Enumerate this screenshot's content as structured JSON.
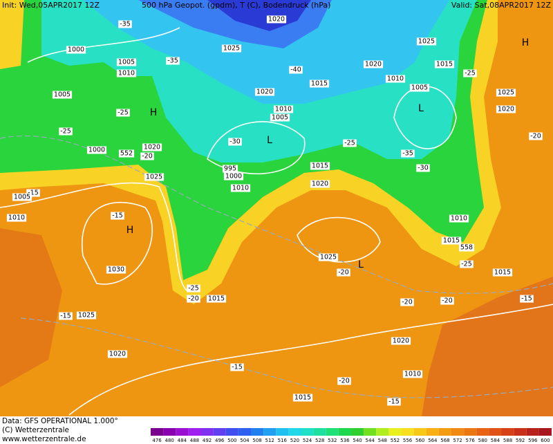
{
  "header": {
    "init": "Init: Wed,05APR2017 12Z",
    "title": "500 hPa Geopot. (gpdm), T (C), Bodendruck (hPa)",
    "valid": "Valid: Sat,08APR2017 12Z"
  },
  "map_labels": [
    "-35",
    "1000",
    "1005",
    "1010",
    "-35",
    "1020",
    "1025",
    "-40",
    "1015",
    "1020",
    "1025",
    "1020",
    "1015",
    "-25",
    "1010",
    "1005",
    "1025",
    "1020",
    "H",
    "L",
    "H",
    "1005",
    "-25",
    "-25",
    "1010",
    "1005",
    "L",
    "-30",
    "1000",
    "552",
    "1020",
    "-20",
    "-25",
    "-35",
    "-30",
    "1015",
    "1020",
    "995",
    "1000",
    "1010",
    "1025",
    "-15",
    "1005",
    "1010",
    "-15",
    "H",
    "1010",
    "1015",
    "558",
    "-25",
    "1030",
    "1025",
    "L",
    "-20",
    "-25",
    "-20",
    "1015",
    "1015",
    "-20",
    "-20",
    "-15",
    "-15",
    "1025",
    "1020",
    "1020",
    "-15",
    "-20",
    "1010",
    "1015",
    "-15",
    "-20"
  ],
  "colorbar": {
    "labels": [
      "476",
      "480",
      "484",
      "488",
      "492",
      "496",
      "500",
      "504",
      "508",
      "512",
      "516",
      "520",
      "524",
      "528",
      "532",
      "536",
      "540",
      "544",
      "548",
      "552",
      "556",
      "560",
      "564",
      "568",
      "572",
      "576",
      "580",
      "584",
      "588",
      "592",
      "596",
      "600"
    ]
  },
  "footer": {
    "data": "Data: GFS OPERATIONAL 1.000°",
    "copyright": "(C) Wetterzentrale",
    "url": "www.wetterzentrale.de"
  }
}
